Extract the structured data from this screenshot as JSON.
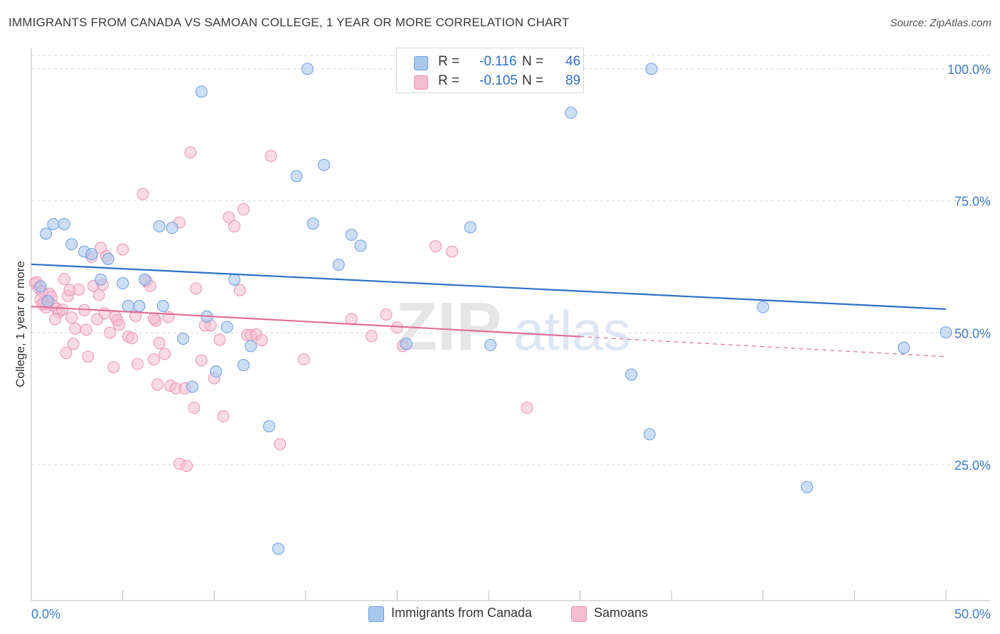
{
  "header": {
    "title": "IMMIGRANTS FROM CANADA VS SAMOAN COLLEGE, 1 YEAR OR MORE CORRELATION CHART",
    "source": "Source: ZipAtlas.com"
  },
  "legend": {
    "r_label": "R =",
    "n_label": "N =",
    "series1": {
      "r": "-0.116",
      "n": "46"
    },
    "series2": {
      "r": "-0.105",
      "n": "89"
    }
  },
  "watermark": {
    "zip": "ZIP",
    "atlas": "atlas"
  },
  "colors": {
    "blue_fill": "#aac8ef",
    "blue_stroke": "#6b9de0",
    "blue_line": "#2f6fc4",
    "pink_fill": "#f6bcd0",
    "pink_stroke": "#ec93b3",
    "pink_line": "#e0709a",
    "tick_blue": "#3d7bd0"
  },
  "chart_data": {
    "type": "scatter",
    "title": "IMMIGRANTS FROM CANADA VS SAMOAN COLLEGE, 1 YEAR OR MORE CORRELATION CHART",
    "xlabel": "",
    "ylabel": "College, 1 year or more",
    "xlim": [
      0,
      50
    ],
    "ylim": [
      0,
      102
    ],
    "x_tick_labels": [
      "0.0%",
      "50.0%"
    ],
    "y_ticks": [
      25,
      50,
      75,
      100
    ],
    "y_tick_labels": [
      "25.0%",
      "50.0%",
      "75.0%",
      "100.0%"
    ],
    "series": [
      {
        "name": "Immigrants from Canada",
        "color": "blue",
        "trend": {
          "x": [
            0,
            50
          ],
          "y": [
            63.0,
            54.5
          ],
          "dashed_from": null
        },
        "points": [
          [
            0.8,
            68.8
          ],
          [
            1.2,
            70.6
          ],
          [
            1.8,
            70.6
          ],
          [
            2.2,
            66.8
          ],
          [
            2.9,
            65.4
          ],
          [
            3.3,
            64.9
          ],
          [
            4.2,
            64.0
          ],
          [
            3.8,
            60.1
          ],
          [
            5.0,
            59.4
          ],
          [
            6.2,
            60.1
          ],
          [
            5.3,
            55.1
          ],
          [
            5.9,
            55.1
          ],
          [
            7.2,
            55.1
          ],
          [
            7.0,
            70.2
          ],
          [
            7.7,
            69.9
          ],
          [
            9.3,
            95.7
          ],
          [
            8.3,
            48.9
          ],
          [
            8.8,
            39.8
          ],
          [
            9.6,
            53.1
          ],
          [
            10.1,
            42.7
          ],
          [
            10.7,
            51.1
          ],
          [
            11.1,
            60.1
          ],
          [
            11.6,
            43.9
          ],
          [
            12.0,
            47.5
          ],
          [
            13.0,
            32.3
          ],
          [
            13.5,
            9.1
          ],
          [
            14.5,
            79.7
          ],
          [
            15.4,
            70.7
          ],
          [
            15.1,
            100.0
          ],
          [
            16.0,
            81.8
          ],
          [
            16.8,
            62.9
          ],
          [
            17.5,
            68.6
          ],
          [
            18.0,
            66.5
          ],
          [
            20.5,
            47.9
          ],
          [
            24.0,
            70.0
          ],
          [
            25.1,
            47.7
          ],
          [
            29.5,
            91.7
          ],
          [
            33.9,
            100.0
          ],
          [
            32.8,
            42.1
          ],
          [
            33.8,
            30.8
          ],
          [
            40.0,
            54.9
          ],
          [
            42.4,
            20.8
          ],
          [
            47.7,
            47.2
          ],
          [
            50.0,
            50.1
          ],
          [
            0.5,
            58.8
          ],
          [
            0.9,
            56.0
          ]
        ]
      },
      {
        "name": "Samoans",
        "color": "pink",
        "trend": {
          "x": [
            0,
            50
          ],
          "y": [
            55.0,
            45.5
          ],
          "dashed_from": 30
        },
        "points": [
          [
            0.2,
            59.4
          ],
          [
            0.4,
            58.5
          ],
          [
            0.6,
            57.8
          ],
          [
            0.7,
            55.9
          ],
          [
            0.5,
            56.3
          ],
          [
            0.9,
            55.4
          ],
          [
            1.0,
            57.4
          ],
          [
            1.1,
            56.8
          ],
          [
            1.2,
            55.2
          ],
          [
            1.4,
            54.6
          ],
          [
            1.5,
            53.9
          ],
          [
            1.7,
            54.4
          ],
          [
            1.8,
            60.2
          ],
          [
            2.0,
            57.0
          ],
          [
            2.1,
            58.1
          ],
          [
            2.2,
            52.9
          ],
          [
            2.3,
            47.9
          ],
          [
            1.9,
            46.2
          ],
          [
            2.6,
            58.2
          ],
          [
            2.9,
            54.3
          ],
          [
            3.1,
            45.5
          ],
          [
            3.4,
            58.9
          ],
          [
            3.6,
            52.6
          ],
          [
            3.8,
            66.1
          ],
          [
            4.1,
            64.5
          ],
          [
            3.3,
            64.4
          ],
          [
            3.7,
            57.2
          ],
          [
            3.9,
            59.1
          ],
          [
            4.0,
            53.7
          ],
          [
            4.3,
            50.0
          ],
          [
            4.5,
            43.5
          ],
          [
            4.6,
            53.1
          ],
          [
            4.7,
            52.4
          ],
          [
            4.8,
            51.5
          ],
          [
            5.0,
            65.8
          ],
          [
            5.3,
            49.3
          ],
          [
            5.5,
            49.0
          ],
          [
            5.8,
            44.1
          ],
          [
            6.1,
            76.3
          ],
          [
            6.3,
            59.8
          ],
          [
            6.5,
            58.9
          ],
          [
            6.7,
            45.0
          ],
          [
            6.8,
            52.3
          ],
          [
            7.0,
            48.1
          ],
          [
            7.3,
            46.0
          ],
          [
            7.6,
            40.0
          ],
          [
            7.9,
            39.5
          ],
          [
            8.1,
            70.9
          ],
          [
            8.4,
            39.5
          ],
          [
            8.7,
            84.2
          ],
          [
            8.9,
            35.8
          ],
          [
            8.1,
            25.2
          ],
          [
            8.5,
            24.8
          ],
          [
            9.0,
            58.4
          ],
          [
            9.3,
            44.8
          ],
          [
            9.5,
            51.4
          ],
          [
            9.8,
            51.4
          ],
          [
            10.0,
            41.4
          ],
          [
            10.3,
            48.7
          ],
          [
            10.5,
            34.2
          ],
          [
            10.8,
            71.9
          ],
          [
            11.1,
            70.2
          ],
          [
            11.4,
            58.1
          ],
          [
            11.6,
            73.4
          ],
          [
            11.8,
            49.6
          ],
          [
            12.0,
            49.6
          ],
          [
            12.3,
            49.7
          ],
          [
            12.6,
            48.6
          ],
          [
            13.1,
            83.5
          ],
          [
            13.6,
            28.9
          ],
          [
            14.9,
            45.0
          ],
          [
            17.5,
            52.6
          ],
          [
            18.6,
            49.4
          ],
          [
            19.4,
            53.5
          ],
          [
            20.0,
            51.0
          ],
          [
            20.3,
            47.5
          ],
          [
            22.1,
            66.4
          ],
          [
            23.0,
            65.4
          ],
          [
            27.1,
            35.8
          ],
          [
            6.7,
            52.7
          ],
          [
            5.7,
            53.2
          ],
          [
            7.5,
            53.0
          ],
          [
            2.4,
            50.8
          ],
          [
            1.3,
            52.6
          ],
          [
            0.3,
            59.6
          ],
          [
            0.8,
            54.8
          ],
          [
            3.0,
            50.6
          ],
          [
            6.9,
            40.2
          ],
          [
            0.6,
            55.4
          ]
        ]
      }
    ]
  },
  "bottom_legend": [
    {
      "label": "Immigrants from Canada"
    },
    {
      "label": "Samoans"
    }
  ]
}
